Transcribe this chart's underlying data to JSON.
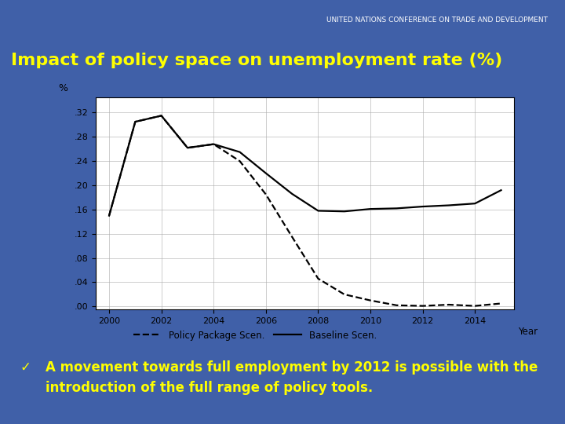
{
  "title": "Impact of policy space on unemployment rate (%)",
  "title_color": "#FFFF00",
  "title_fontsize": 16,
  "bg_outer": "#4060A8",
  "bg_header": "#7080B8",
  "bg_chart": "#FFFFFF",
  "header_text": "UNITED NATIONS CONFERENCE ON TRADE AND DEVELOPMENT",
  "ylabel": "%",
  "xlabel": "Year",
  "yticks": [
    0.0,
    0.04,
    0.08,
    0.12,
    0.16,
    0.2,
    0.24,
    0.28,
    0.32
  ],
  "ytick_labels": [
    ".00",
    ".04",
    ".08",
    ".12",
    ".16",
    ".20",
    ".24",
    ".28",
    ".32"
  ],
  "xticks": [
    2000,
    2002,
    2004,
    2006,
    2008,
    2010,
    2012,
    2014
  ],
  "ylim": [
    -0.005,
    0.345
  ],
  "xlim": [
    1999.5,
    2015.5
  ],
  "baseline_x": [
    2000,
    2001,
    2002,
    2003,
    2004,
    2005,
    2006,
    2007,
    2008,
    2009,
    2010,
    2011,
    2012,
    2013,
    2014,
    2015
  ],
  "baseline_y": [
    0.15,
    0.305,
    0.315,
    0.262,
    0.268,
    0.255,
    0.22,
    0.186,
    0.158,
    0.157,
    0.161,
    0.162,
    0.165,
    0.167,
    0.17,
    0.192
  ],
  "policy_x": [
    2000,
    2001,
    2002,
    2003,
    2004,
    2005,
    2006,
    2007,
    2008,
    2009,
    2010,
    2011,
    2012,
    2013,
    2014,
    2015
  ],
  "policy_y": [
    0.15,
    0.305,
    0.315,
    0.262,
    0.268,
    0.24,
    0.185,
    0.115,
    0.046,
    0.02,
    0.01,
    0.002,
    0.001,
    0.003,
    0.001,
    0.005
  ],
  "line_color": "#000000",
  "legend_dashed": "Policy Package Scen.",
  "legend_solid": "Baseline Scen.",
  "bullet_text": "A movement towards full employment by 2012 is possible with the\nintroduction of the full range of policy tools.",
  "bullet_color": "#FFFF00",
  "bullet_fontsize": 12
}
